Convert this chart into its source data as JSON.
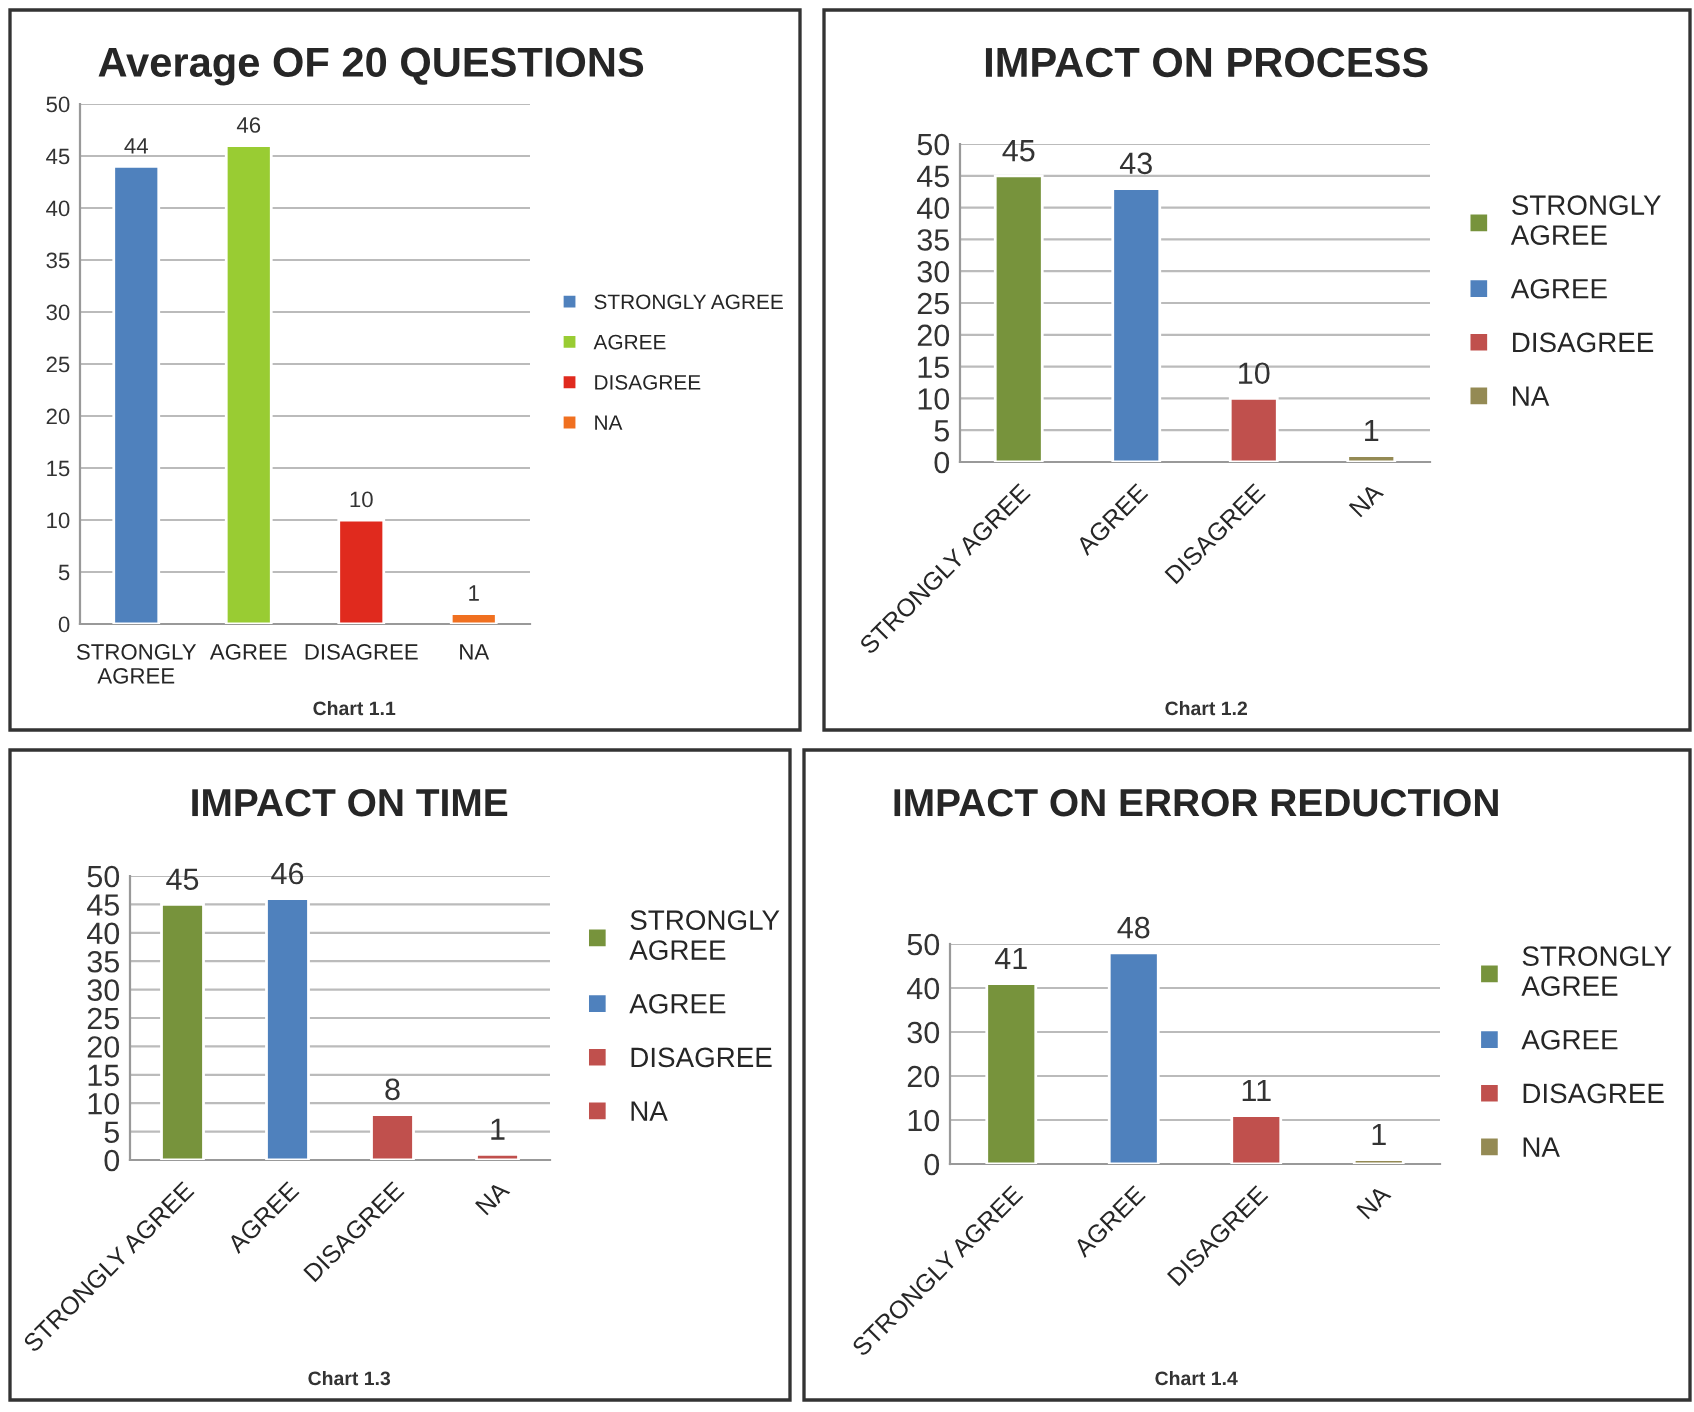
{
  "chart_data": [
    {
      "type": "bar",
      "title": "Average OF 20 QUESTIONS",
      "categories": [
        "STRONGLY AGREE",
        "AGREE",
        "DISAGREE",
        "NA"
      ],
      "series": [
        {
          "name": "STRONGLY AGREE",
          "color": "#4f81bd",
          "values": [
            44,
            null,
            null,
            null
          ]
        },
        {
          "name": "AGREE",
          "color": "#99cc33",
          "values": [
            null,
            46,
            null,
            null
          ]
        },
        {
          "name": "DISAGREE",
          "color": "#e02a1e",
          "values": [
            null,
            null,
            10,
            null
          ]
        },
        {
          "name": "NA",
          "color": "#f07020",
          "values": [
            null,
            null,
            null,
            1
          ]
        }
      ],
      "ylim": [
        0,
        50
      ],
      "yticks": [
        0,
        5,
        10,
        15,
        20,
        25,
        30,
        35,
        40,
        45,
        50
      ],
      "grid": "y",
      "legend": "right",
      "data_labels": true,
      "annotations": [
        "Chart 1.1"
      ]
    },
    {
      "type": "bar",
      "title": "IMPACT ON PROCESS",
      "categories": [
        "STRONGLY AGREE",
        "AGREE",
        "DISAGREE",
        "NA"
      ],
      "series": [
        {
          "name": "STRONGLY AGREE",
          "color": "#77933c",
          "values": [
            45,
            null,
            null,
            null
          ]
        },
        {
          "name": "AGREE",
          "color": "#4f81bd",
          "values": [
            null,
            43,
            null,
            null
          ]
        },
        {
          "name": "DISAGREE",
          "color": "#c0504d",
          "values": [
            null,
            null,
            10,
            null
          ]
        },
        {
          "name": "NA",
          "color": "#948a54",
          "values": [
            null,
            null,
            null,
            1
          ]
        }
      ],
      "ylim": [
        0,
        50
      ],
      "yticks": [
        0,
        5,
        10,
        15,
        20,
        25,
        30,
        35,
        40,
        45,
        50
      ],
      "grid": "y",
      "legend": "right",
      "data_labels": true,
      "annotations": [
        "Chart 1.2"
      ]
    },
    {
      "type": "bar",
      "title": "IMPACT ON TIME",
      "categories": [
        "STRONGLY AGREE",
        "AGREE",
        "DISAGREE",
        "NA"
      ],
      "series": [
        {
          "name": "STRONGLY AGREE",
          "color": "#77933c",
          "values": [
            45,
            null,
            null,
            null
          ]
        },
        {
          "name": "AGREE",
          "color": "#4f81bd",
          "values": [
            null,
            46,
            null,
            null
          ]
        },
        {
          "name": "DISAGREE",
          "color": "#c0504d",
          "values": [
            null,
            null,
            8,
            null
          ]
        },
        {
          "name": "NA",
          "color": "#c0504d",
          "values": [
            null,
            null,
            null,
            1
          ]
        }
      ],
      "ylim": [
        0,
        50
      ],
      "yticks": [
        0,
        5,
        10,
        15,
        20,
        25,
        30,
        35,
        40,
        45,
        50
      ],
      "grid": "y",
      "legend": "right",
      "data_labels": true,
      "annotations": [
        "Chart 1.3"
      ]
    },
    {
      "type": "bar",
      "title": "IMPACT ON ERROR REDUCTION",
      "categories": [
        "STRONGLY AGREE",
        "AGREE",
        "DISAGREE",
        "NA"
      ],
      "series": [
        {
          "name": "STRONGLY AGREE",
          "color": "#77933c",
          "values": [
            41,
            null,
            null,
            null
          ]
        },
        {
          "name": "AGREE",
          "color": "#4f81bd",
          "values": [
            null,
            48,
            null,
            null
          ]
        },
        {
          "name": "DISAGREE",
          "color": "#c0504d",
          "values": [
            null,
            null,
            11,
            null
          ]
        },
        {
          "name": "NA",
          "color": "#948a54",
          "values": [
            null,
            null,
            null,
            1
          ]
        }
      ],
      "ylim": [
        0,
        50
      ],
      "yticks": [
        0,
        10,
        20,
        30,
        40,
        50
      ],
      "grid": "y",
      "legend": "right",
      "data_labels": true,
      "annotations": [
        "Chart 1.4"
      ]
    }
  ]
}
